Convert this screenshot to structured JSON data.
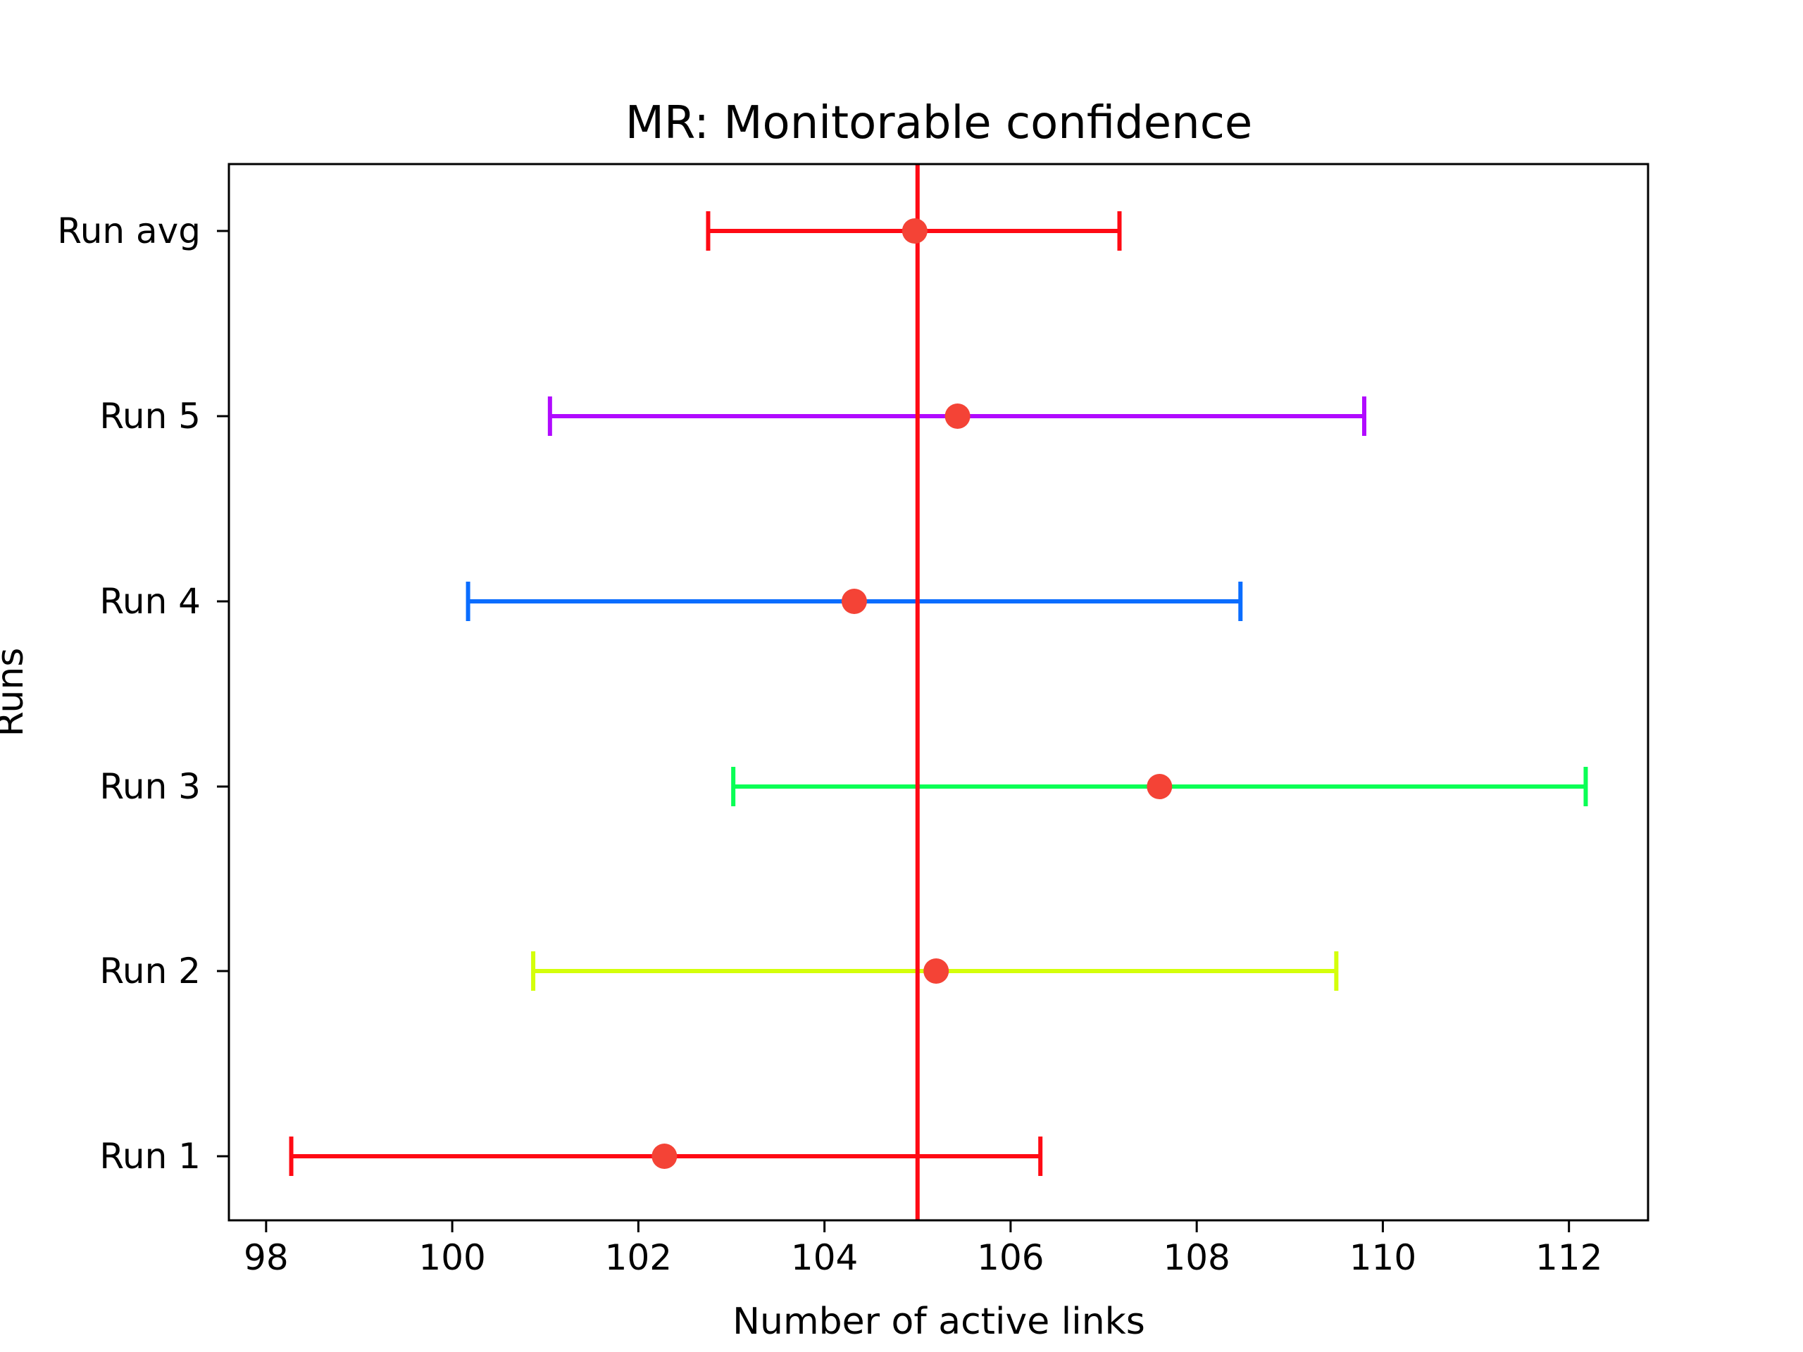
{
  "chart_data": {
    "type": "errorbar",
    "title": "MR: Monitorable confidence",
    "xlabel": "Number of active links",
    "ylabel": "Runs",
    "xlim": [
      97.6,
      112.85
    ],
    "xticks": [
      98,
      100,
      102,
      104,
      106,
      108,
      110,
      112
    ],
    "categories": [
      "Run 1",
      "Run 2",
      "Run 3",
      "Run 4",
      "Run 5",
      "Run avg"
    ],
    "series": [
      {
        "category": "Run 1",
        "mean": 102.28,
        "low": 98.27,
        "high": 106.32,
        "color": "#ff0a14"
      },
      {
        "category": "Run 2",
        "mean": 105.2,
        "low": 100.87,
        "high": 109.5,
        "color": "#d4ff0a"
      },
      {
        "category": "Run 3",
        "mean": 107.6,
        "low": 103.02,
        "high": 112.18,
        "color": "#0aff55"
      },
      {
        "category": "Run 4",
        "mean": 104.32,
        "low": 100.17,
        "high": 108.47,
        "color": "#0a6dff"
      },
      {
        "category": "Run 5",
        "mean": 105.43,
        "low": 101.05,
        "high": 109.8,
        "color": "#b10aff"
      },
      {
        "category": "Run avg",
        "mean": 104.97,
        "low": 102.75,
        "high": 107.17,
        "color": "#ff0a14"
      }
    ],
    "reference_line": {
      "x": 105.0,
      "color": "#ff0a14"
    },
    "marker_color": "#f44336",
    "grid": false,
    "legend": "none"
  }
}
